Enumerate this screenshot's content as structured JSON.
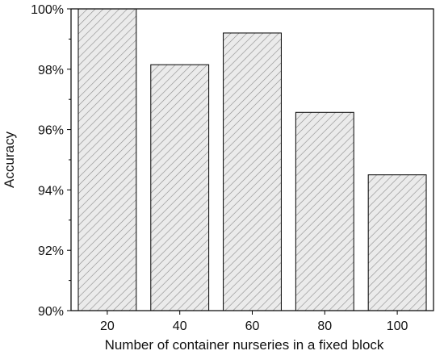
{
  "chart_data": {
    "type": "bar",
    "categories": [
      "20",
      "40",
      "60",
      "80",
      "100"
    ],
    "values": [
      100.0,
      98.15,
      99.2,
      96.57,
      94.5
    ],
    "xlabel": "Number of container nurseries in a fixed block",
    "ylabel": "Accuracy",
    "ylim": [
      90,
      100
    ],
    "yticks": [
      "90%",
      "92%",
      "94%",
      "96%",
      "98%",
      "100%"
    ],
    "ytick_values": [
      90,
      92,
      94,
      96,
      98,
      100
    ],
    "bar_fill": "hatched",
    "colors": {
      "bar_fill": "#ebebeb",
      "hatch": "#8a8a8a",
      "outline": "#000000"
    },
    "grid": false,
    "legend": "none"
  }
}
